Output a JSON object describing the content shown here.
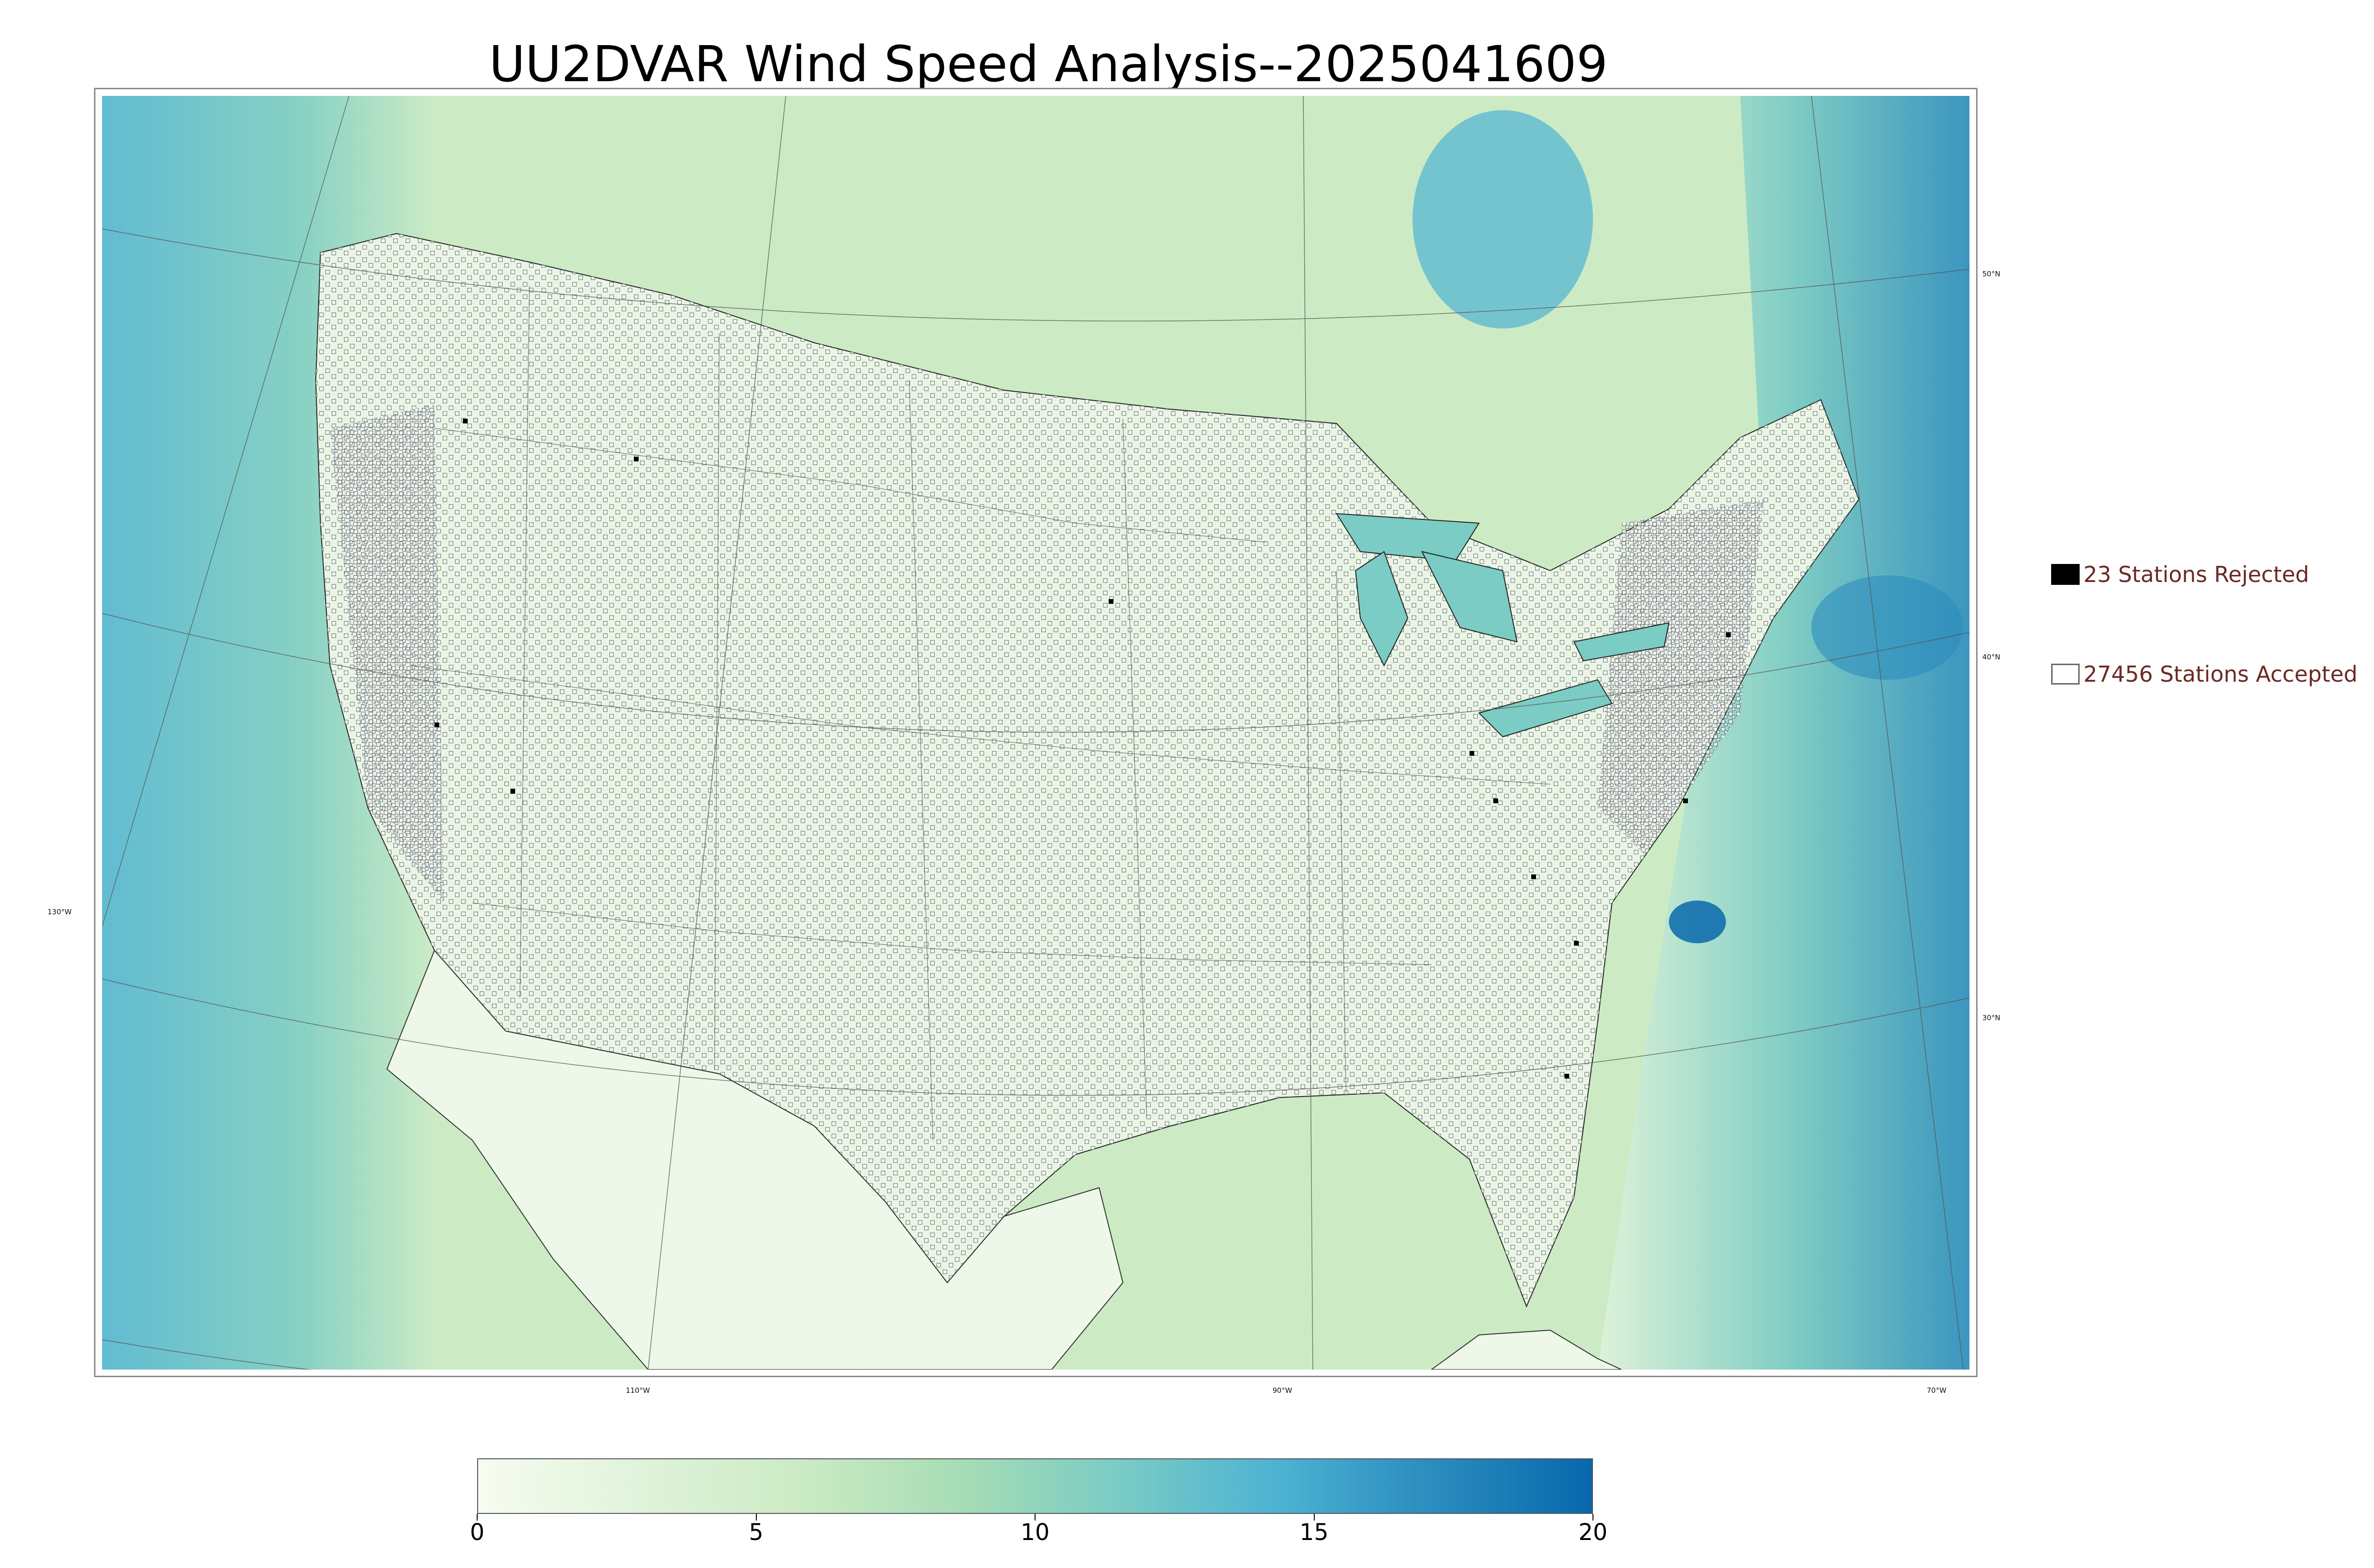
{
  "title": "UU2DVAR Wind Speed Analysis--2025041609",
  "graticule_labels": {
    "lat_50": "50°N",
    "lat_40": "40°N",
    "lat_30": "30°N",
    "lon_130": "130°W",
    "lon_110": "110°W",
    "lon_90": "90°W",
    "lon_70": "70°W"
  },
  "legend": {
    "rejected": "23 Stations Rejected",
    "accepted": "27456 Stations Accepted"
  },
  "colorbar": {
    "min": 0,
    "max": 20,
    "ticks": [
      "0",
      "5",
      "10",
      "15",
      "20"
    ],
    "colors": [
      "#f7fcf0",
      "#e0f3db",
      "#ccebc5",
      "#a8ddb5",
      "#7bccc4",
      "#4eb3d3",
      "#2b8cbe",
      "#0868ac"
    ]
  }
}
